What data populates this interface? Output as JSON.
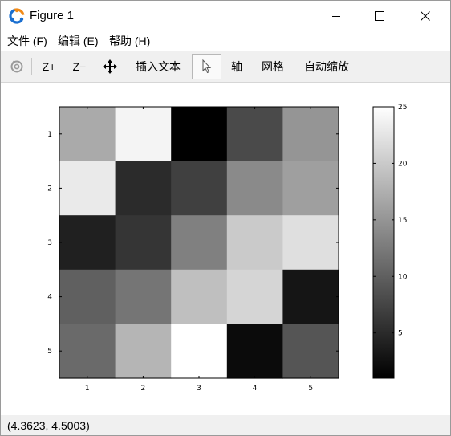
{
  "window": {
    "title": "Figure 1"
  },
  "menubar": {
    "items": [
      {
        "label": "文件 (F)"
      },
      {
        "label": "编辑 (E)"
      },
      {
        "label": "帮助 (H)"
      }
    ]
  },
  "toolbar": {
    "rotate_icon": "rotate-3d-icon",
    "zoom_in_label": "Z+",
    "zoom_out_label": "Z−",
    "pan_icon": "pan-move-icon",
    "insert_text_label": "插入文本",
    "select_icon": "pointer-select-icon",
    "axis_label": "轴",
    "grid_label": "网格",
    "autoscale_label": "自动缩放"
  },
  "status": {
    "coordinates": "(4.3623, 4.5003)"
  },
  "chart_data": {
    "type": "heatmap",
    "colormap": "gray",
    "rows": [
      1,
      2,
      3,
      4,
      5
    ],
    "columns": [
      1,
      2,
      3,
      4,
      5
    ],
    "x_tick_labels": [
      "1",
      "2",
      "3",
      "4",
      "5"
    ],
    "y_tick_labels": [
      "1",
      "2",
      "3",
      "4",
      "5"
    ],
    "values": [
      [
        17,
        24,
        1,
        8,
        15
      ],
      [
        23,
        5,
        7,
        14,
        16
      ],
      [
        4,
        6,
        13,
        20,
        22
      ],
      [
        10,
        12,
        19,
        21,
        3
      ],
      [
        11,
        18,
        25,
        2,
        9
      ]
    ],
    "colorbar": {
      "min": 1,
      "max": 25,
      "ticks": [
        5,
        10,
        15,
        20,
        25
      ],
      "tick_labels": [
        "5",
        "10",
        "15",
        "20",
        "25"
      ]
    }
  }
}
